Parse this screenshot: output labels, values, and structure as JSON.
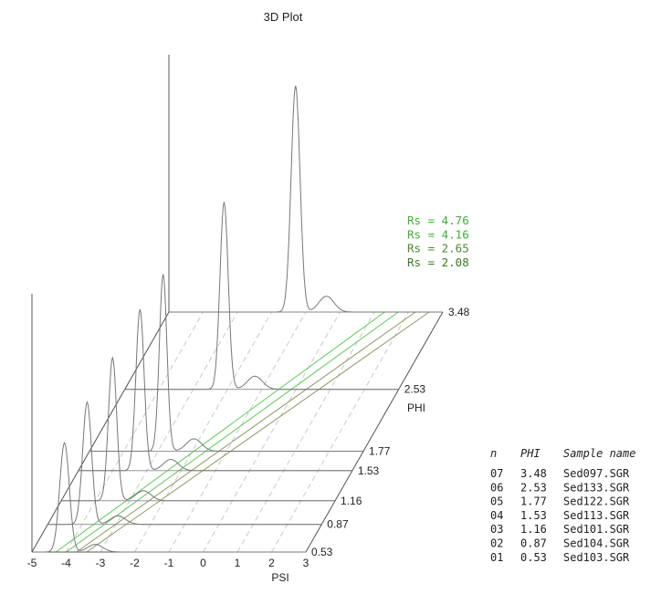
{
  "chart_data": {
    "type": "line",
    "title": "3D Plot",
    "xlabel": "PSI",
    "zlabel": "PHI",
    "xlim": [
      -5,
      3
    ],
    "x_ticks": [
      -5,
      -4,
      -3,
      -2,
      -1,
      0,
      1,
      2,
      3
    ],
    "series": [
      {
        "n": "01",
        "phi": 0.53,
        "phi_label": "0.53",
        "sample": "Sed103.SGR",
        "peak_psi": -4.05,
        "peak_height": 0.42,
        "sigma": 0.14
      },
      {
        "n": "02",
        "phi": 0.87,
        "phi_label": "0.87",
        "sample": "Sed104.SGR",
        "peak_psi": -3.85,
        "peak_height": 0.47,
        "sigma": 0.13
      },
      {
        "n": "03",
        "phi": 1.16,
        "phi_label": "1.16",
        "sample": "Sed101.SGR",
        "peak_psi": -3.5,
        "peak_height": 0.55,
        "sigma": 0.12
      },
      {
        "n": "04",
        "phi": 1.53,
        "phi_label": "1.53",
        "sample": "Sed113.SGR",
        "peak_psi": -3.2,
        "peak_height": 0.62,
        "sigma": 0.12
      },
      {
        "n": "05",
        "phi": 1.77,
        "phi_label": "1.77",
        "sample": "Sed122.SGR",
        "peak_psi": -2.85,
        "peak_height": 0.68,
        "sigma": 0.11
      },
      {
        "n": "06",
        "phi": 2.53,
        "phi_label": "2.53",
        "sample": "Sed133.SGR",
        "peak_psi": -2.1,
        "peak_height": 0.72,
        "sigma": 0.12
      },
      {
        "n": "07",
        "phi": 3.48,
        "phi_label": "3.48",
        "sample": "Sed097.SGR",
        "peak_psi": -1.3,
        "peak_height": 0.87,
        "sigma": 0.13
      }
    ],
    "rs_values": [
      {
        "label": "Rs =",
        "value": "4.76",
        "color": "#3cb034"
      },
      {
        "label": "Rs =",
        "value": "4.16",
        "color": "#3cb034"
      },
      {
        "label": "Rs =",
        "value": "2.65",
        "color": "#4a8a2a"
      },
      {
        "label": "Rs =",
        "value": "2.08",
        "color": "#3a7a22"
      }
    ],
    "table": {
      "headers": [
        "n",
        "PHI",
        "Sample name"
      ]
    },
    "colors": {
      "curve": "#777777",
      "axis": "#555555",
      "green_line": "#5ec95a",
      "olive_line": "#8a9a60",
      "text": "#222222"
    }
  }
}
